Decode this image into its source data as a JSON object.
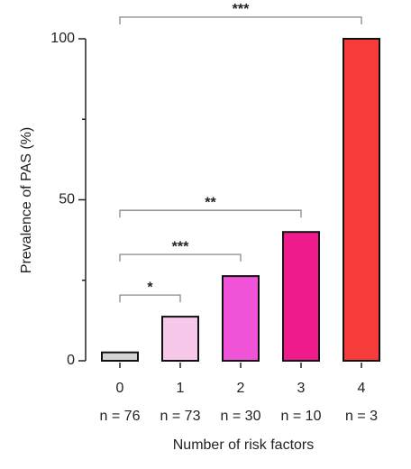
{
  "chart_data": {
    "type": "bar",
    "ylabel": "Prevalence of PAS (%)",
    "xlabel": "Number of risk factors",
    "categories": [
      "0",
      "1",
      "2",
      "3",
      "4"
    ],
    "sample_sizes": [
      "n = 76",
      "n = 73",
      "n = 30",
      "n = 10",
      "n = 3"
    ],
    "values": [
      2.6,
      13.7,
      26.3,
      40,
      100
    ],
    "colors": [
      "#d4d4d4",
      "#f7c8ea",
      "#f052d8",
      "#ef1a8c",
      "#f63b3b"
    ],
    "ylim": [
      0,
      100
    ],
    "yticks": [
      0,
      50,
      100
    ],
    "minor_yticks": [
      25,
      75
    ],
    "annotations": [
      {
        "from": "0",
        "to": "1",
        "label": "*"
      },
      {
        "from": "0",
        "to": "2",
        "label": "***"
      },
      {
        "from": "0",
        "to": "3",
        "label": "**"
      },
      {
        "from": "0",
        "to": "4",
        "label": "***"
      }
    ]
  }
}
